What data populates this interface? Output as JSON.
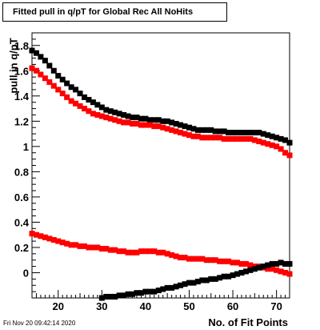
{
  "title": "Fitted pull in q/pT for Global Rec All NoHits",
  "ylabel": "pull in q/pT",
  "xlabel": "No. of Fit Points",
  "timestamp": "Fri Nov 20 09:42:14 2020",
  "chart_data": {
    "type": "scatter",
    "title": "Fitted pull in q/pT for Global Rec All NoHits",
    "xlabel": "No. of Fit Points",
    "ylabel": "pull in q/pT",
    "xlim": [
      14,
      73
    ],
    "ylim": [
      -0.2,
      1.9
    ],
    "xticks": [
      20,
      30,
      40,
      50,
      60,
      70
    ],
    "yticks": [
      0,
      0.2,
      0.4,
      0.6,
      0.8,
      1,
      1.2,
      1.4,
      1.6,
      1.8
    ],
    "grid": false,
    "marker": "square",
    "x": [
      14,
      15,
      16,
      17,
      18,
      19,
      20,
      21,
      22,
      23,
      24,
      25,
      26,
      27,
      28,
      29,
      30,
      31,
      32,
      33,
      34,
      35,
      36,
      37,
      38,
      39,
      40,
      41,
      42,
      43,
      44,
      45,
      46,
      47,
      48,
      49,
      50,
      51,
      52,
      53,
      54,
      55,
      56,
      57,
      58,
      59,
      60,
      61,
      62,
      63,
      64,
      65,
      66,
      67,
      68,
      69,
      70,
      71,
      72,
      73
    ],
    "series": [
      {
        "color": "#000000",
        "values": [
          1.76,
          1.74,
          1.71,
          1.68,
          1.64,
          1.6,
          1.56,
          1.53,
          1.5,
          1.47,
          1.45,
          1.42,
          1.39,
          1.37,
          1.35,
          1.33,
          1.31,
          1.29,
          1.28,
          1.27,
          1.26,
          1.25,
          1.24,
          1.23,
          1.23,
          1.22,
          1.22,
          1.21,
          1.21,
          1.21,
          1.2,
          1.2,
          1.19,
          1.18,
          1.17,
          1.16,
          1.15,
          1.14,
          1.13,
          1.13,
          1.13,
          1.13,
          1.12,
          1.12,
          1.12,
          1.11,
          1.11,
          1.11,
          1.11,
          1.11,
          1.11,
          1.11,
          1.11,
          1.1,
          1.09,
          1.08,
          1.07,
          1.06,
          1.05,
          1.03
        ]
      },
      {
        "color": "#ff0000",
        "values": [
          1.62,
          1.6,
          1.57,
          1.54,
          1.51,
          1.48,
          1.45,
          1.42,
          1.39,
          1.36,
          1.34,
          1.32,
          1.3,
          1.28,
          1.26,
          1.25,
          1.24,
          1.23,
          1.22,
          1.21,
          1.2,
          1.19,
          1.19,
          1.18,
          1.18,
          1.17,
          1.17,
          1.17,
          1.16,
          1.16,
          1.15,
          1.14,
          1.13,
          1.12,
          1.11,
          1.1,
          1.09,
          1.08,
          1.08,
          1.07,
          1.07,
          1.07,
          1.07,
          1.07,
          1.06,
          1.06,
          1.06,
          1.06,
          1.06,
          1.06,
          1.06,
          1.05,
          1.04,
          1.03,
          1.02,
          1.01,
          1.0,
          0.98,
          0.95,
          0.93
        ]
      },
      {
        "color": "#ff0000",
        "values": [
          0.31,
          0.3,
          0.29,
          0.28,
          0.27,
          0.26,
          0.25,
          0.24,
          0.23,
          0.22,
          0.22,
          0.21,
          0.21,
          0.2,
          0.2,
          0.2,
          0.19,
          0.19,
          0.18,
          0.18,
          0.17,
          0.17,
          0.16,
          0.16,
          0.16,
          0.17,
          0.17,
          0.17,
          0.17,
          0.16,
          0.16,
          0.15,
          0.14,
          0.13,
          0.12,
          0.12,
          0.11,
          0.11,
          0.11,
          0.11,
          0.1,
          0.1,
          0.1,
          0.09,
          0.09,
          0.09,
          0.08,
          0.08,
          0.07,
          0.07,
          0.06,
          0.05,
          0.05,
          0.04,
          0.03,
          0.03,
          0.02,
          0.01,
          0.0,
          -0.01
        ]
      },
      {
        "color": "#000000",
        "x": [
          30,
          31,
          32,
          33,
          34,
          35,
          36,
          37,
          38,
          39,
          40,
          41,
          42,
          43,
          44,
          45,
          46,
          47,
          48,
          49,
          50,
          51,
          52,
          53,
          54,
          55,
          56,
          57,
          58,
          59,
          60,
          61,
          62,
          63,
          64,
          65,
          66,
          67,
          68,
          69,
          70,
          71,
          72,
          73
        ],
        "values": [
          -0.2,
          -0.19,
          -0.19,
          -0.19,
          -0.18,
          -0.18,
          -0.17,
          -0.17,
          -0.16,
          -0.16,
          -0.15,
          -0.15,
          -0.15,
          -0.14,
          -0.13,
          -0.12,
          -0.12,
          -0.11,
          -0.1,
          -0.09,
          -0.08,
          -0.08,
          -0.07,
          -0.06,
          -0.06,
          -0.05,
          -0.05,
          -0.04,
          -0.03,
          -0.03,
          -0.02,
          -0.01,
          0.0,
          0.01,
          0.02,
          0.03,
          0.04,
          0.05,
          0.06,
          0.07,
          0.07,
          0.08,
          0.07,
          0.07
        ]
      }
    ]
  }
}
